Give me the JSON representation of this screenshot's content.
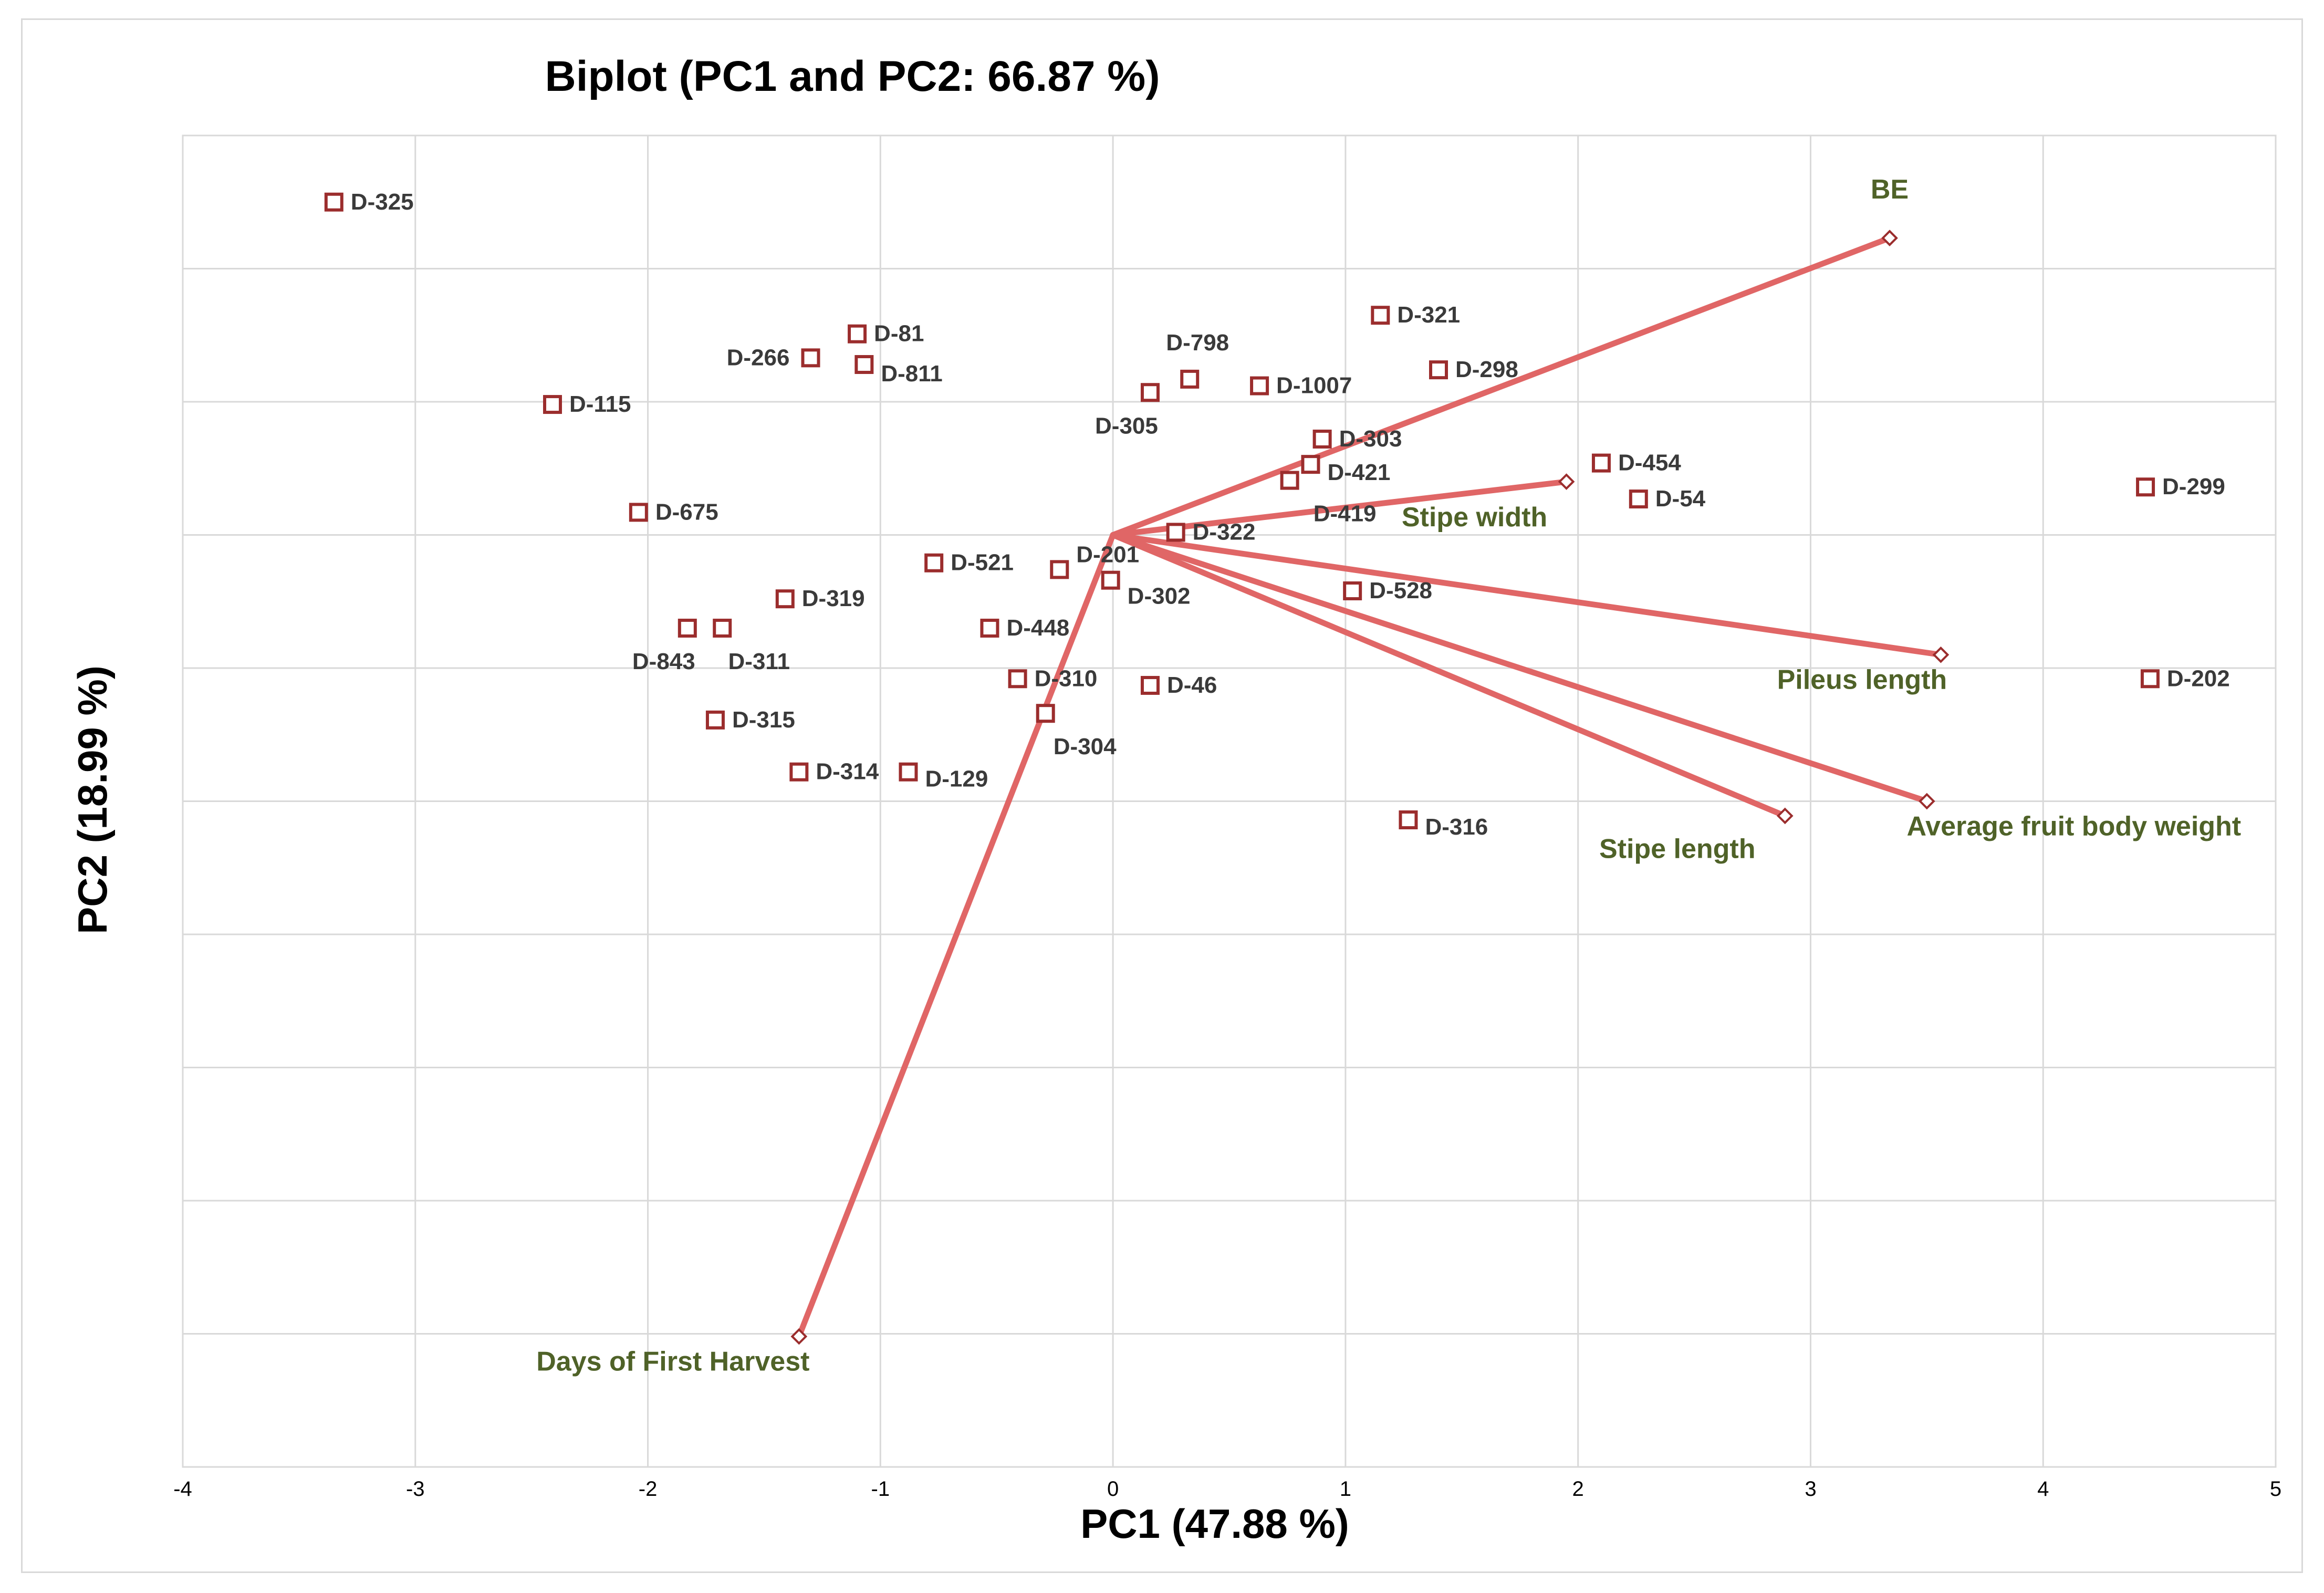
{
  "chart_data": {
    "type": "scatter",
    "title": "Biplot (PC1 and PC2: 66.87 %)",
    "xlabel": "PC1 (47.88 %)",
    "ylabel": "PC2 (18.99 %)",
    "xlim": [
      -4,
      5
    ],
    "ylim": [
      -7,
      3
    ],
    "x_ticks": [
      "-4",
      "-3",
      "-2",
      "-1",
      "0",
      "1",
      "2",
      "3",
      "4",
      "5"
    ],
    "grid": true,
    "colors": {
      "points": "#9b2d2d",
      "vectors": "#e06666",
      "vector_labels": "#4f6228",
      "grid": "#d9d9d9"
    },
    "points": [
      {
        "label": "D-325",
        "x": -3.35,
        "y": 2.5
      },
      {
        "label": "D-115",
        "x": -2.41,
        "y": 0.98
      },
      {
        "label": "D-266",
        "x": -1.3,
        "y": 1.33
      },
      {
        "label": "D-81",
        "x": -1.1,
        "y": 1.51
      },
      {
        "label": "D-811",
        "x": -1.07,
        "y": 1.28
      },
      {
        "label": "D-675",
        "x": -2.04,
        "y": 0.17
      },
      {
        "label": "D-319",
        "x": -1.41,
        "y": -0.48
      },
      {
        "label": "D-843",
        "x": -1.83,
        "y": -0.7
      },
      {
        "label": "D-311",
        "x": -1.68,
        "y": -0.7
      },
      {
        "label": "D-315",
        "x": -1.71,
        "y": -1.39
      },
      {
        "label": "D-314",
        "x": -1.35,
        "y": -1.78
      },
      {
        "label": "D-129",
        "x": -0.88,
        "y": -1.78
      },
      {
        "label": "D-521",
        "x": -0.77,
        "y": -0.21
      },
      {
        "label": "D-448",
        "x": -0.53,
        "y": -0.7
      },
      {
        "label": "D-310",
        "x": -0.41,
        "y": -1.08
      },
      {
        "label": "D-304",
        "x": -0.29,
        "y": -1.34
      },
      {
        "label": "D-201",
        "x": -0.23,
        "y": -0.26
      },
      {
        "label": "D-302",
        "x": -0.01,
        "y": -0.34
      },
      {
        "label": "D-322",
        "x": 0.27,
        "y": 0.02
      },
      {
        "label": "D-305",
        "x": 0.16,
        "y": 1.07
      },
      {
        "label": "D-798",
        "x": 0.33,
        "y": 1.17
      },
      {
        "label": "D-1007",
        "x": 0.63,
        "y": 1.12
      },
      {
        "label": "D-303",
        "x": 0.9,
        "y": 0.72
      },
      {
        "label": "D-421",
        "x": 0.85,
        "y": 0.53
      },
      {
        "label": "D-419",
        "x": 0.76,
        "y": 0.41
      },
      {
        "label": "D-321",
        "x": 1.15,
        "y": 1.65
      },
      {
        "label": "D-298",
        "x": 1.4,
        "y": 1.24
      },
      {
        "label": "D-454",
        "x": 2.1,
        "y": 0.54
      },
      {
        "label": "D-54",
        "x": 2.26,
        "y": 0.27
      },
      {
        "label": "D-299",
        "x": 4.44,
        "y": 0.36
      },
      {
        "label": "D-528",
        "x": 1.03,
        "y": -0.42
      },
      {
        "label": "D-46",
        "x": 0.16,
        "y": -1.13
      },
      {
        "label": "D-316",
        "x": 1.27,
        "y": -2.14
      },
      {
        "label": "D-202",
        "x": 4.46,
        "y": -1.08
      }
    ],
    "vectors": [
      {
        "label": "BE",
        "x": 3.34,
        "y": 2.23
      },
      {
        "label": "Stipe width",
        "x": 1.95,
        "y": 0.4
      },
      {
        "label": "Pileus  length",
        "x": 3.56,
        "y": -0.9
      },
      {
        "label": "Stipe length",
        "x": 2.89,
        "y": -2.11
      },
      {
        "label": "Average fruit body weight",
        "x": 3.5,
        "y": -2.0
      },
      {
        "label": "Days of First Harvest",
        "x": -1.35,
        "y": -6.02
      }
    ]
  }
}
